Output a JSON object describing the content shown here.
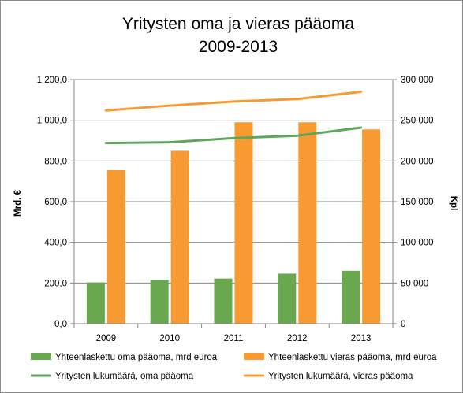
{
  "chart_data": {
    "type": "bar",
    "title": "Yritysten oma ja vieras pääoma",
    "subtitle": "2009-2013",
    "categories": [
      "2009",
      "2010",
      "2011",
      "2012",
      "2013"
    ],
    "y_left": {
      "label": "Mrd. €",
      "range": [
        0,
        1200
      ],
      "ticks": [
        "0,0",
        "200,0",
        "400,0",
        "600,0",
        "800,0",
        "1 000,0",
        "1 200,0"
      ]
    },
    "y_right": {
      "label": "Kpl",
      "range": [
        0,
        300000
      ],
      "ticks": [
        "0",
        "50 000",
        "100 000",
        "150 000",
        "200 000",
        "250 000",
        "300 000"
      ]
    },
    "grid": true,
    "legend_position": "bottom",
    "series": [
      {
        "name": "Yhteenlaskettu oma pääoma, mrd  euroa",
        "kind": "bar",
        "axis": "left",
        "color": "#6aa84f",
        "values": [
          203,
          215,
          222,
          246,
          260
        ]
      },
      {
        "name": "Yhteenlaskettu vieras pääoma, mrd euroa",
        "kind": "bar",
        "axis": "left",
        "color": "#f79a32",
        "values": [
          755,
          850,
          990,
          990,
          955
        ]
      },
      {
        "name": "Yritysten lukumäärä, oma pääoma",
        "kind": "line",
        "axis": "right",
        "color": "#5fa65a",
        "values": [
          222000,
          223000,
          228000,
          231000,
          241000
        ]
      },
      {
        "name": "Yritysten lukumäärä, vieras pääoma",
        "kind": "line",
        "axis": "right",
        "color": "#f79a32",
        "values": [
          262000,
          268000,
          273000,
          276000,
          285000
        ]
      }
    ]
  }
}
